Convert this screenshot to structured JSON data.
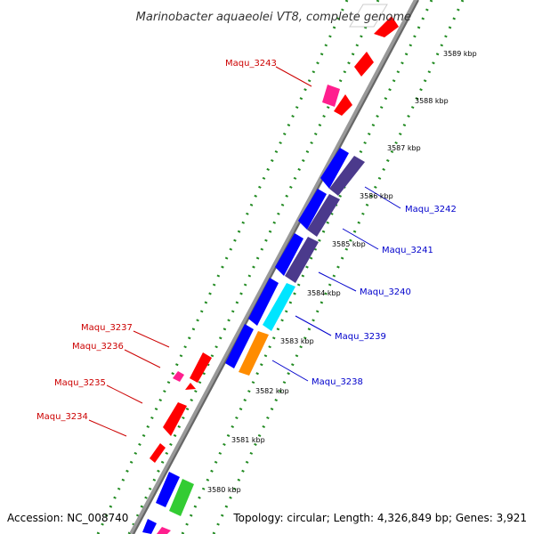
{
  "title": "Marinobacter aquaeolei VT8, complete genome",
  "footer": {
    "accession": "Accession: NC_008740",
    "topology": "Topology: circular; Length: 4,326,849 bp; Genes: 3,921"
  },
  "ticks": [
    "3580 kbp",
    "3581 kbp",
    "3582 kbp",
    "3583 kbp",
    "3584 kbp",
    "3585 kbp",
    "3586 kbp",
    "3587 kbp",
    "3588 kbp",
    "3589 kbp"
  ],
  "gene_labels": {
    "left": [
      "Maqu_3243",
      "Maqu_3237",
      "Maqu_3236",
      "Maqu_3235",
      "Maqu_3234"
    ],
    "right": [
      "Maqu_3242",
      "Maqu_3241",
      "Maqu_3240",
      "Maqu_3239",
      "Maqu_3238"
    ]
  },
  "colors": {
    "backbone": "#808080",
    "reverse_cds": "#ff0000",
    "forward_cds": "#0000ff",
    "highlight_purple": "#4b3a8c",
    "highlight_cyan": "#00e5ff",
    "highlight_orange": "#ff8c00",
    "pink": "#ff1f8e",
    "green": "#33cc33",
    "left_label": "#cc0000",
    "right_label": "#0000cc",
    "dots_green": "#228b22"
  }
}
